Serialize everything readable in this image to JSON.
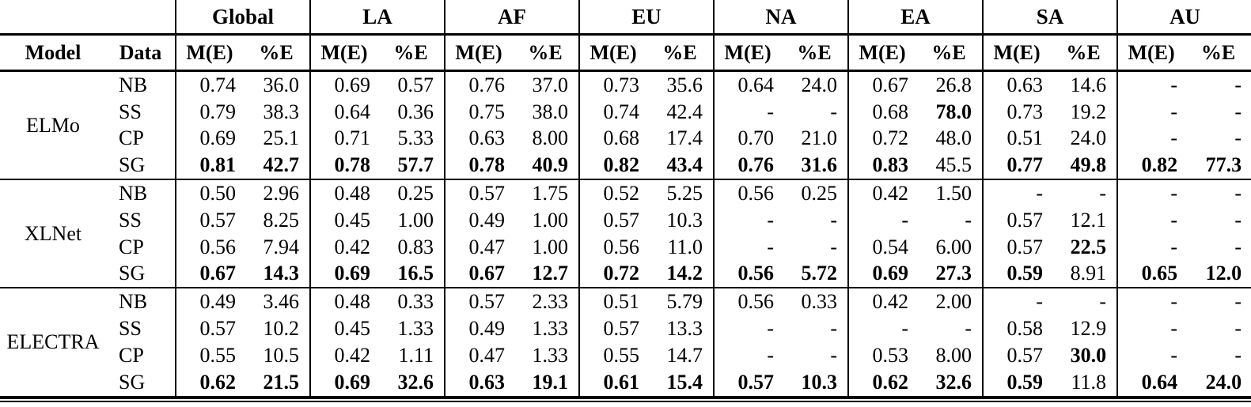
{
  "table": {
    "header": {
      "model": "Model",
      "data": "Data",
      "regions": [
        "Global",
        "LA",
        "AF",
        "EU",
        "NA",
        "EA",
        "SA",
        "AU"
      ],
      "metric": "M(E)",
      "percent": "%E"
    },
    "sections": [
      {
        "model": "ELMo",
        "rows": [
          {
            "data": "NB",
            "cells": [
              {
                "v": "0.74"
              },
              {
                "v": "36.0"
              },
              {
                "v": "0.69"
              },
              {
                "v": "0.57"
              },
              {
                "v": "0.76"
              },
              {
                "v": "37.0"
              },
              {
                "v": "0.73"
              },
              {
                "v": "35.6"
              },
              {
                "v": "0.64"
              },
              {
                "v": "24.0"
              },
              {
                "v": "0.67"
              },
              {
                "v": "26.8"
              },
              {
                "v": "0.63"
              },
              {
                "v": "14.6"
              },
              {
                "v": "-"
              },
              {
                "v": "-"
              }
            ]
          },
          {
            "data": "SS",
            "cells": [
              {
                "v": "0.79"
              },
              {
                "v": "38.3"
              },
              {
                "v": "0.64"
              },
              {
                "v": "0.36"
              },
              {
                "v": "0.75"
              },
              {
                "v": "38.0"
              },
              {
                "v": "0.74"
              },
              {
                "v": "42.4"
              },
              {
                "v": "-"
              },
              {
                "v": "-"
              },
              {
                "v": "0.68"
              },
              {
                "v": "78.0",
                "b": true
              },
              {
                "v": "0.73"
              },
              {
                "v": "19.2"
              },
              {
                "v": "-"
              },
              {
                "v": "-"
              }
            ]
          },
          {
            "data": "CP",
            "cells": [
              {
                "v": "0.69"
              },
              {
                "v": "25.1"
              },
              {
                "v": "0.71"
              },
              {
                "v": "5.33"
              },
              {
                "v": "0.63"
              },
              {
                "v": "8.00"
              },
              {
                "v": "0.68"
              },
              {
                "v": "17.4"
              },
              {
                "v": "0.70"
              },
              {
                "v": "21.0"
              },
              {
                "v": "0.72"
              },
              {
                "v": "48.0"
              },
              {
                "v": "0.51"
              },
              {
                "v": "24.0"
              },
              {
                "v": "-"
              },
              {
                "v": "-"
              }
            ]
          },
          {
            "data": "SG",
            "cells": [
              {
                "v": "0.81",
                "b": true
              },
              {
                "v": "42.7",
                "b": true
              },
              {
                "v": "0.78",
                "b": true
              },
              {
                "v": "57.7",
                "b": true
              },
              {
                "v": "0.78",
                "b": true
              },
              {
                "v": "40.9",
                "b": true
              },
              {
                "v": "0.82",
                "b": true
              },
              {
                "v": "43.4",
                "b": true
              },
              {
                "v": "0.76",
                "b": true
              },
              {
                "v": "31.6",
                "b": true
              },
              {
                "v": "0.83",
                "b": true
              },
              {
                "v": "45.5"
              },
              {
                "v": "0.77",
                "b": true
              },
              {
                "v": "49.8",
                "b": true
              },
              {
                "v": "0.82",
                "b": true
              },
              {
                "v": "77.3",
                "b": true
              }
            ]
          }
        ]
      },
      {
        "model": "XLNet",
        "rows": [
          {
            "data": "NB",
            "cells": [
              {
                "v": "0.50"
              },
              {
                "v": "2.96"
              },
              {
                "v": "0.48"
              },
              {
                "v": "0.25"
              },
              {
                "v": "0.57"
              },
              {
                "v": "1.75"
              },
              {
                "v": "0.52"
              },
              {
                "v": "5.25"
              },
              {
                "v": "0.56"
              },
              {
                "v": "0.25"
              },
              {
                "v": "0.42"
              },
              {
                "v": "1.50"
              },
              {
                "v": "-"
              },
              {
                "v": "-"
              },
              {
                "v": "-"
              },
              {
                "v": "-"
              }
            ]
          },
          {
            "data": "SS",
            "cells": [
              {
                "v": "0.57"
              },
              {
                "v": "8.25"
              },
              {
                "v": "0.45"
              },
              {
                "v": "1.00"
              },
              {
                "v": "0.49"
              },
              {
                "v": "1.00"
              },
              {
                "v": "0.57"
              },
              {
                "v": "10.3"
              },
              {
                "v": "-"
              },
              {
                "v": "-"
              },
              {
                "v": "-"
              },
              {
                "v": "-"
              },
              {
                "v": "0.57"
              },
              {
                "v": "12.1"
              },
              {
                "v": "-"
              },
              {
                "v": "-"
              }
            ]
          },
          {
            "data": "CP",
            "cells": [
              {
                "v": "0.56"
              },
              {
                "v": "7.94"
              },
              {
                "v": "0.42"
              },
              {
                "v": "0.83"
              },
              {
                "v": "0.47"
              },
              {
                "v": "1.00"
              },
              {
                "v": "0.56"
              },
              {
                "v": "11.0"
              },
              {
                "v": "-"
              },
              {
                "v": "-"
              },
              {
                "v": "0.54"
              },
              {
                "v": "6.00"
              },
              {
                "v": "0.57"
              },
              {
                "v": "22.5",
                "b": true
              },
              {
                "v": "-"
              },
              {
                "v": "-"
              }
            ]
          },
          {
            "data": "SG",
            "cells": [
              {
                "v": "0.67",
                "b": true
              },
              {
                "v": "14.3",
                "b": true
              },
              {
                "v": "0.69",
                "b": true
              },
              {
                "v": "16.5",
                "b": true
              },
              {
                "v": "0.67",
                "b": true
              },
              {
                "v": "12.7",
                "b": true
              },
              {
                "v": "0.72",
                "b": true
              },
              {
                "v": "14.2",
                "b": true
              },
              {
                "v": "0.56",
                "b": true
              },
              {
                "v": "5.72",
                "b": true
              },
              {
                "v": "0.69",
                "b": true
              },
              {
                "v": "27.3",
                "b": true
              },
              {
                "v": "0.59",
                "b": true
              },
              {
                "v": "8.91"
              },
              {
                "v": "0.65",
                "b": true
              },
              {
                "v": "12.0",
                "b": true
              }
            ]
          }
        ]
      },
      {
        "model": "ELECTRA",
        "rows": [
          {
            "data": "NB",
            "cells": [
              {
                "v": "0.49"
              },
              {
                "v": "3.46"
              },
              {
                "v": "0.48"
              },
              {
                "v": "0.33"
              },
              {
                "v": "0.57"
              },
              {
                "v": "2.33"
              },
              {
                "v": "0.51"
              },
              {
                "v": "5.79"
              },
              {
                "v": "0.56"
              },
              {
                "v": "0.33"
              },
              {
                "v": "0.42"
              },
              {
                "v": "2.00"
              },
              {
                "v": "-"
              },
              {
                "v": "-"
              },
              {
                "v": "-"
              },
              {
                "v": "-"
              }
            ]
          },
          {
            "data": "SS",
            "cells": [
              {
                "v": "0.57"
              },
              {
                "v": "10.2"
              },
              {
                "v": "0.45"
              },
              {
                "v": "1.33"
              },
              {
                "v": "0.49"
              },
              {
                "v": "1.33"
              },
              {
                "v": "0.57"
              },
              {
                "v": "13.3"
              },
              {
                "v": "-"
              },
              {
                "v": "-"
              },
              {
                "v": "-"
              },
              {
                "v": "-"
              },
              {
                "v": "0.58"
              },
              {
                "v": "12.9"
              },
              {
                "v": "-"
              },
              {
                "v": "-"
              }
            ]
          },
          {
            "data": "CP",
            "cells": [
              {
                "v": "0.55"
              },
              {
                "v": "10.5"
              },
              {
                "v": "0.42"
              },
              {
                "v": "1.11"
              },
              {
                "v": "0.47"
              },
              {
                "v": "1.33"
              },
              {
                "v": "0.55"
              },
              {
                "v": "14.7"
              },
              {
                "v": "-"
              },
              {
                "v": "-"
              },
              {
                "v": "0.53"
              },
              {
                "v": "8.00"
              },
              {
                "v": "0.57"
              },
              {
                "v": "30.0",
                "b": true
              },
              {
                "v": "-"
              },
              {
                "v": "-"
              }
            ]
          },
          {
            "data": "SG",
            "cells": [
              {
                "v": "0.62",
                "b": true
              },
              {
                "v": "21.5",
                "b": true
              },
              {
                "v": "0.69",
                "b": true
              },
              {
                "v": "32.6",
                "b": true
              },
              {
                "v": "0.63",
                "b": true
              },
              {
                "v": "19.1",
                "b": true
              },
              {
                "v": "0.61",
                "b": true
              },
              {
                "v": "15.4",
                "b": true
              },
              {
                "v": "0.57",
                "b": true
              },
              {
                "v": "10.3",
                "b": true
              },
              {
                "v": "0.62",
                "b": true
              },
              {
                "v": "32.6",
                "b": true
              },
              {
                "v": "0.59",
                "b": true
              },
              {
                "v": "11.8"
              },
              {
                "v": "0.64",
                "b": true
              },
              {
                "v": "24.0",
                "b": true
              }
            ]
          }
        ]
      }
    ]
  }
}
